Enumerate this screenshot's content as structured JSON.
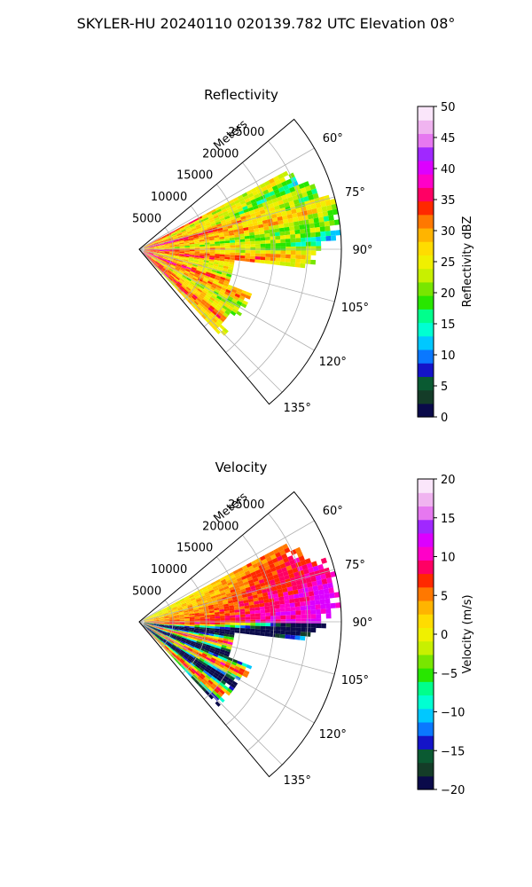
{
  "figure": {
    "suptitle": "SKYLER-HU  20240110  020139.782 UTC Elevation 08°"
  },
  "chart_data": [
    {
      "type": "heatmap",
      "projection": "polar-sector",
      "title": "Reflectivity",
      "range_label": "Meters",
      "range_ticks": [
        5000,
        10000,
        15000,
        20000,
        25000
      ],
      "range_tick_labels": [
        "5000",
        "10000",
        "15000",
        "20000",
        "25000"
      ],
      "range_lim": [
        0,
        30000
      ],
      "azimuth_ticks": [
        60,
        75,
        90,
        105,
        120,
        135
      ],
      "azimuth_tick_labels": [
        "60°",
        "75°",
        "90°",
        "105°",
        "120°",
        "135°"
      ],
      "azimuth_lim": [
        50,
        140
      ],
      "grid": true,
      "colorbar": {
        "label": "Reflectivity dBZ",
        "vmin": 0,
        "vmax": 50,
        "ticks": [
          0,
          5,
          10,
          15,
          20,
          25,
          30,
          35,
          40,
          45,
          50
        ],
        "tick_labels": [
          "0",
          "5",
          "10",
          "15",
          "20",
          "25",
          "30",
          "35",
          "40",
          "45",
          "50"
        ]
      },
      "colormap": [
        "#0a0a4a",
        "#143c28",
        "#0a5a32",
        "#1414c8",
        "#0a78ff",
        "#00c8ff",
        "#00ffd2",
        "#00ff8c",
        "#28e600",
        "#78e600",
        "#c8f000",
        "#f0f000",
        "#ffdc00",
        "#ffb400",
        "#ff7800",
        "#ff2800",
        "#ff0064",
        "#ff00c8",
        "#dc00ff",
        "#a028ff",
        "#e678f0",
        "#f0b4f0",
        "#fae6fa"
      ]
    },
    {
      "type": "heatmap",
      "projection": "polar-sector",
      "title": "Velocity",
      "range_label": "Meters",
      "range_ticks": [
        5000,
        10000,
        15000,
        20000,
        25000
      ],
      "range_tick_labels": [
        "5000",
        "10000",
        "15000",
        "20000",
        "25000"
      ],
      "range_lim": [
        0,
        30000
      ],
      "azimuth_ticks": [
        60,
        75,
        90,
        105,
        120,
        135
      ],
      "azimuth_tick_labels": [
        "60°",
        "75°",
        "90°",
        "105°",
        "120°",
        "135°"
      ],
      "azimuth_lim": [
        50,
        140
      ],
      "grid": true,
      "colorbar": {
        "label": "Velocity (m/s)",
        "vmin": -20,
        "vmax": 20,
        "ticks": [
          -20,
          -15,
          -10,
          -5,
          0,
          5,
          10,
          15,
          20
        ],
        "tick_labels": [
          "−20",
          "−15",
          "−10",
          "−5",
          "0",
          "5",
          "10",
          "15",
          "20"
        ]
      },
      "colormap": [
        "#0a0a4a",
        "#143c28",
        "#0a5a32",
        "#1414c8",
        "#0a78ff",
        "#00c8ff",
        "#00ffd2",
        "#00ff8c",
        "#28e600",
        "#78e600",
        "#c8f000",
        "#f0f000",
        "#ffdc00",
        "#ffb400",
        "#ff7800",
        "#ff2800",
        "#ff0064",
        "#ff00c8",
        "#dc00ff",
        "#a028ff",
        "#e678f0",
        "#f0b4f0",
        "#fae6fa"
      ]
    }
  ]
}
